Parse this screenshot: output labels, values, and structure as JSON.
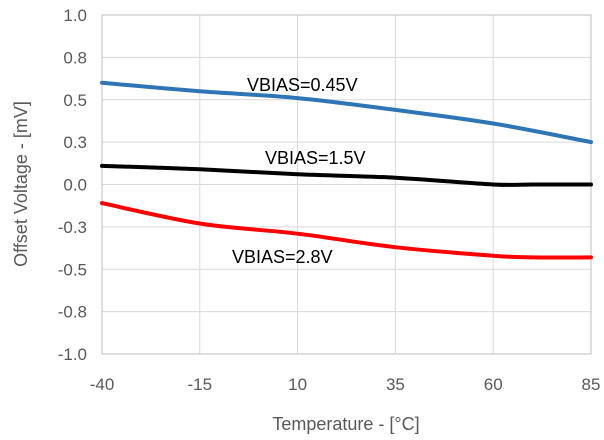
{
  "chart_data": {
    "type": "line",
    "title": "",
    "xlabel": "Temperature - [°C]",
    "ylabel": "Offset Voltage - [mV]",
    "xlim": [
      -40,
      85
    ],
    "ylim": [
      -1.0,
      1.0
    ],
    "x_ticks": [
      -40,
      -15,
      10,
      35,
      60,
      85
    ],
    "x_tick_labels": [
      "-40",
      "-15",
      "10",
      "35",
      "60",
      "85"
    ],
    "y_ticks": [
      1.0,
      0.75,
      0.5,
      0.25,
      0.0,
      -0.25,
      -0.5,
      -0.75,
      -1.0
    ],
    "y_tick_labels": [
      "1.0",
      "0.8",
      "0.5",
      "0.3",
      "0.0",
      "-0.3",
      "-0.5",
      "-0.8",
      "-1.0"
    ],
    "grid": true,
    "legend": "none",
    "series": [
      {
        "name": "VBIAS=0.45V",
        "color": "#2e75b6",
        "x": [
          -40,
          -15,
          10,
          35,
          60,
          85
        ],
        "y": [
          0.6,
          0.55,
          0.51,
          0.44,
          0.36,
          0.25
        ]
      },
      {
        "name": "VBIAS=1.5V",
        "color": "#000000",
        "x": [
          -40,
          -15,
          10,
          35,
          60,
          70,
          85
        ],
        "y": [
          0.11,
          0.09,
          0.06,
          0.04,
          0.0,
          0.0,
          0.0
        ]
      },
      {
        "name": "VBIAS=2.8V",
        "color": "#ff0000",
        "x": [
          -40,
          -15,
          10,
          35,
          60,
          70,
          85
        ],
        "y": [
          -0.11,
          -0.23,
          -0.29,
          -0.37,
          -0.42,
          -0.43,
          -0.43
        ]
      }
    ]
  }
}
